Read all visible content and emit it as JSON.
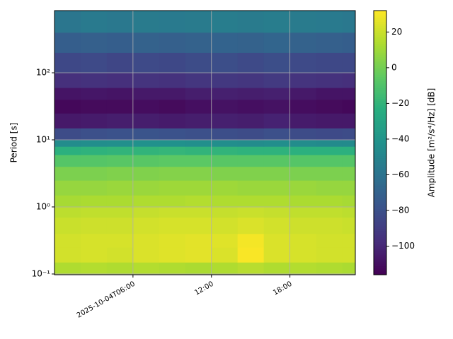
{
  "chart_data": {
    "type": "spectrogram",
    "ylabel": "Period [s]",
    "colorbar_label": "Amplitude [m²/s⁴/Hz] [dB]",
    "colormap": "viridis",
    "grid": true,
    "log_y": true,
    "x": [
      "2025-10-04T00:00",
      "2025-10-04T02:00",
      "2025-10-04T04:00",
      "2025-10-04T06:00",
      "2025-10-04T08:00",
      "2025-10-04T10:00",
      "2025-10-04T12:00",
      "2025-10-04T14:00",
      "2025-10-04T16:00",
      "2025-10-04T18:00",
      "2025-10-04T20:00",
      "2025-10-04T22:00",
      "2025-10-04T23:00"
    ],
    "periods": [
      0.0975,
      0.15,
      0.25,
      0.4,
      0.7,
      1,
      1.5,
      2.5,
      4,
      6,
      8,
      10,
      15,
      25,
      40,
      60,
      100,
      200,
      400,
      845
    ],
    "xlim": [
      "2025-10-04T00:00",
      "2025-10-04T23:00"
    ],
    "xticks": [
      "2025-10-04T06:00",
      {
        "value": "2025-10-04T12:00",
        "label": "12:00"
      },
      {
        "value": "2025-10-04T18:00",
        "label": "18:00"
      }
    ],
    "ylim": [
      0.0975,
      845
    ],
    "yticks": [
      {
        "value": 0.1,
        "label": "10⁻¹"
      },
      {
        "value": 1,
        "label": "10⁰"
      },
      {
        "value": 10,
        "label": "10¹"
      },
      {
        "value": 100,
        "label": "10²"
      }
    ],
    "clim": [
      -116,
      32
    ],
    "cticks": [
      {
        "value": -100,
        "label": "−100"
      },
      {
        "value": -80,
        "label": "−80"
      },
      {
        "value": -60,
        "label": "−60"
      },
      {
        "value": -40,
        "label": "−40"
      },
      {
        "value": -20,
        "label": "−20"
      },
      0,
      20
    ],
    "values": [
      [
        14,
        15,
        14,
        15,
        14,
        13,
        14,
        16,
        14,
        15,
        14,
        13
      ],
      [
        22,
        23,
        22,
        24,
        25,
        26,
        24,
        31,
        24,
        23,
        22,
        22
      ],
      [
        22,
        23,
        23,
        24,
        25,
        26,
        25,
        30,
        24,
        23,
        22,
        22
      ],
      [
        20,
        21,
        21,
        22,
        23,
        23,
        22,
        24,
        22,
        21,
        21,
        20
      ],
      [
        17,
        18,
        18,
        19,
        20,
        20,
        19,
        20,
        19,
        18,
        18,
        17
      ],
      [
        12,
        13,
        13,
        14,
        14,
        15,
        14,
        14,
        14,
        13,
        13,
        12
      ],
      [
        8,
        8,
        9,
        9,
        10,
        10,
        10,
        9,
        9,
        9,
        8,
        8
      ],
      [
        2,
        2,
        3,
        3,
        4,
        4,
        3,
        3,
        3,
        2,
        2,
        2
      ],
      [
        -8,
        -8,
        -7,
        -7,
        -6,
        -6,
        -7,
        -7,
        -7,
        -8,
        -8,
        -8
      ],
      [
        -22,
        -21,
        -20,
        -20,
        -19,
        -20,
        -20,
        -21,
        -21,
        -22,
        -22,
        -22
      ],
      [
        -45,
        -44,
        -43,
        -42,
        -42,
        -43,
        -44,
        -45,
        -44,
        -45,
        -46,
        -46
      ],
      [
        -82,
        -80,
        -79,
        -78,
        -79,
        -80,
        -81,
        -82,
        -80,
        -82,
        -83,
        -82
      ],
      [
        -106,
        -105,
        -104,
        -104,
        -105,
        -104,
        -103,
        -104,
        -102,
        -105,
        -106,
        -106
      ],
      [
        -113,
        -112,
        -112,
        -111,
        -112,
        -110,
        -109,
        -110,
        -109,
        -111,
        -112,
        -113
      ],
      [
        -108,
        -107,
        -108,
        -106,
        -106,
        -104,
        -103,
        -104,
        -103,
        -106,
        -108,
        -108
      ],
      [
        -96,
        -95,
        -96,
        -94,
        -95,
        -93,
        -92,
        -93,
        -91,
        -94,
        -95,
        -96
      ],
      [
        -84,
        -83,
        -85,
        -83,
        -84,
        -82,
        -81,
        -83,
        -81,
        -83,
        -84,
        -84
      ],
      [
        -72,
        -71,
        -72,
        -70,
        -71,
        -70,
        -69,
        -70,
        -68,
        -70,
        -71,
        -72
      ],
      [
        -58,
        -56,
        -57,
        -55,
        -56,
        -55,
        -54,
        -55,
        -54,
        -55,
        -56,
        -57
      ]
    ]
  }
}
